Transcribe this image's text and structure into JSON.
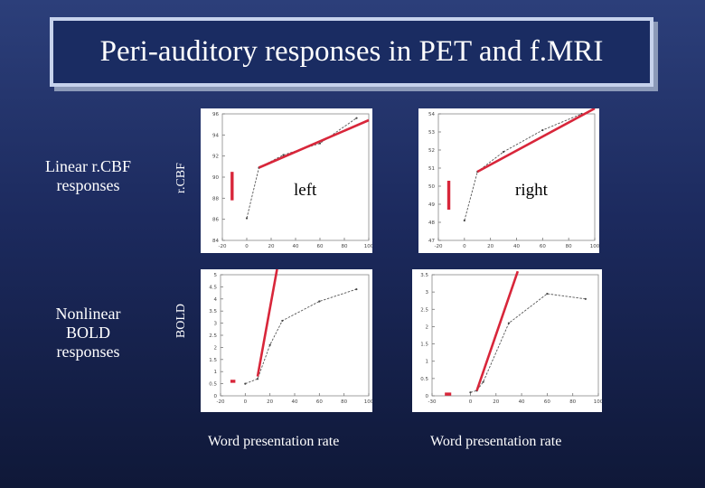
{
  "title": "Peri-auditory responses in PET and f.MRI",
  "row_labels": {
    "linear": [
      "Linear r.CBF",
      "responses"
    ],
    "nonlinear": [
      "Nonlinear",
      "BOLD",
      "responses"
    ]
  },
  "y_axis_labels": {
    "top": "r.CBF",
    "bottom": "BOLD"
  },
  "panel_labels": {
    "left": "left",
    "right": "right"
  },
  "x_axis_label": "Word presentation rate",
  "colors": {
    "fit_line": "#d8263a",
    "data_line": "#555555",
    "panel_bg": "#ffffff"
  },
  "chart_data": [
    {
      "id": "rcbf-left",
      "type": "line",
      "xlim": [
        -20,
        100
      ],
      "ylim": [
        84,
        96
      ],
      "xticks": [
        -20,
        0,
        20,
        40,
        60,
        80,
        100
      ],
      "yticks": [
        84,
        86,
        88,
        90,
        92,
        94,
        96
      ],
      "series": [
        {
          "role": "data",
          "x": [
            0,
            10,
            30,
            60,
            90
          ],
          "y": [
            86.1,
            90.9,
            92.1,
            93.2,
            95.6
          ]
        },
        {
          "role": "fit",
          "x": [
            10,
            100
          ],
          "y": [
            90.9,
            95.4
          ]
        },
        {
          "role": "zero",
          "x": [
            -12,
            -12
          ],
          "y": [
            87.8,
            90.5
          ]
        }
      ]
    },
    {
      "id": "rcbf-right",
      "type": "line",
      "xlim": [
        -20,
        100
      ],
      "ylim": [
        47,
        54
      ],
      "xticks": [
        -20,
        0,
        20,
        40,
        60,
        80,
        100
      ],
      "yticks": [
        47,
        48,
        49,
        50,
        51,
        52,
        53,
        54
      ],
      "series": [
        {
          "role": "data",
          "x": [
            0,
            10,
            30,
            60,
            90
          ],
          "y": [
            48.1,
            50.8,
            51.9,
            53.1,
            54.0
          ]
        },
        {
          "role": "fit",
          "x": [
            10,
            100
          ],
          "y": [
            50.8,
            54.3
          ]
        },
        {
          "role": "zero",
          "x": [
            -12,
            -12
          ],
          "y": [
            48.7,
            50.3
          ]
        }
      ]
    },
    {
      "id": "bold-left",
      "type": "line",
      "xlim": [
        -20,
        100
      ],
      "ylim": [
        0,
        5
      ],
      "xticks": [
        -20,
        0,
        20,
        40,
        60,
        80,
        100
      ],
      "yticks": [
        0,
        0.5,
        1,
        1.5,
        2,
        2.5,
        3,
        3.5,
        4,
        4.5,
        5
      ],
      "series": [
        {
          "role": "data",
          "x": [
            0,
            10,
            20,
            30,
            60,
            90
          ],
          "y": [
            0.5,
            0.7,
            2.1,
            3.1,
            3.9,
            4.4
          ]
        },
        {
          "role": "fit",
          "x": [
            10,
            26
          ],
          "y": [
            0.8,
            5.3
          ]
        },
        {
          "role": "zero",
          "x": [
            -12,
            -8
          ],
          "y": [
            0.6,
            0.6
          ]
        }
      ]
    },
    {
      "id": "bold-right",
      "type": "line",
      "xlim": [
        -30,
        100
      ],
      "ylim": [
        0,
        3.5
      ],
      "xticks": [
        -30,
        0,
        20,
        40,
        60,
        80,
        100
      ],
      "yticks": [
        0,
        0.5,
        1,
        1.5,
        2,
        2.5,
        3,
        3.5
      ],
      "series": [
        {
          "role": "data",
          "x": [
            0,
            5,
            10,
            30,
            60,
            90
          ],
          "y": [
            0.1,
            0.15,
            0.4,
            2.1,
            2.95,
            2.8
          ]
        },
        {
          "role": "fit",
          "x": [
            5,
            37
          ],
          "y": [
            0.15,
            3.6
          ]
        },
        {
          "role": "zero",
          "x": [
            -20,
            -15
          ],
          "y": [
            0.05,
            0.05
          ]
        }
      ]
    }
  ]
}
